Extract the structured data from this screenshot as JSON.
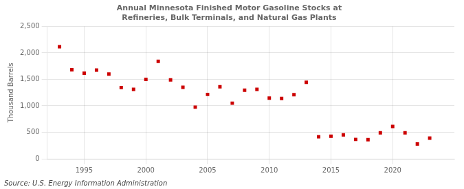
{
  "chart_data": {
    "type": "scatter",
    "title": "Annual Minnesota Finished Motor Gasoline Stocks at Refineries, Bulk Terminals, and Natural Gas Plants",
    "y_label": "Thousand Barrels",
    "annotations": [
      "Source: U.S. Energy Information Administration"
    ],
    "x": [
      1993,
      1994,
      1995,
      1996,
      1997,
      1998,
      1999,
      2000,
      2001,
      2002,
      2003,
      2004,
      2005,
      2006,
      2007,
      2008,
      2009,
      2010,
      2011,
      2012,
      2013,
      2014,
      2015,
      2016,
      2017,
      2018,
      2019,
      2020,
      2021,
      2022,
      2023
    ],
    "values": [
      2115,
      1680,
      1615,
      1675,
      1600,
      1345,
      1310,
      1500,
      1840,
      1490,
      1350,
      975,
      1215,
      1360,
      1050,
      1295,
      1310,
      1145,
      1140,
      1210,
      1445,
      415,
      425,
      450,
      365,
      360,
      490,
      610,
      490,
      280,
      390
    ],
    "color": "#cc0000",
    "marker": "square",
    "xlim": [
      1992,
      2025
    ],
    "xticks": [
      1995,
      2000,
      2005,
      2010,
      2015,
      2020
    ],
    "ylim": [
      0,
      2500
    ],
    "yticks": [
      0,
      500,
      {
        "value": 1000,
        "label": "1,000"
      },
      {
        "value": 1500,
        "label": "1,500"
      },
      {
        "value": 2000,
        "label": "2,000"
      },
      {
        "value": 2500,
        "label": "2,500"
      }
    ],
    "grid": true,
    "legend": false
  }
}
